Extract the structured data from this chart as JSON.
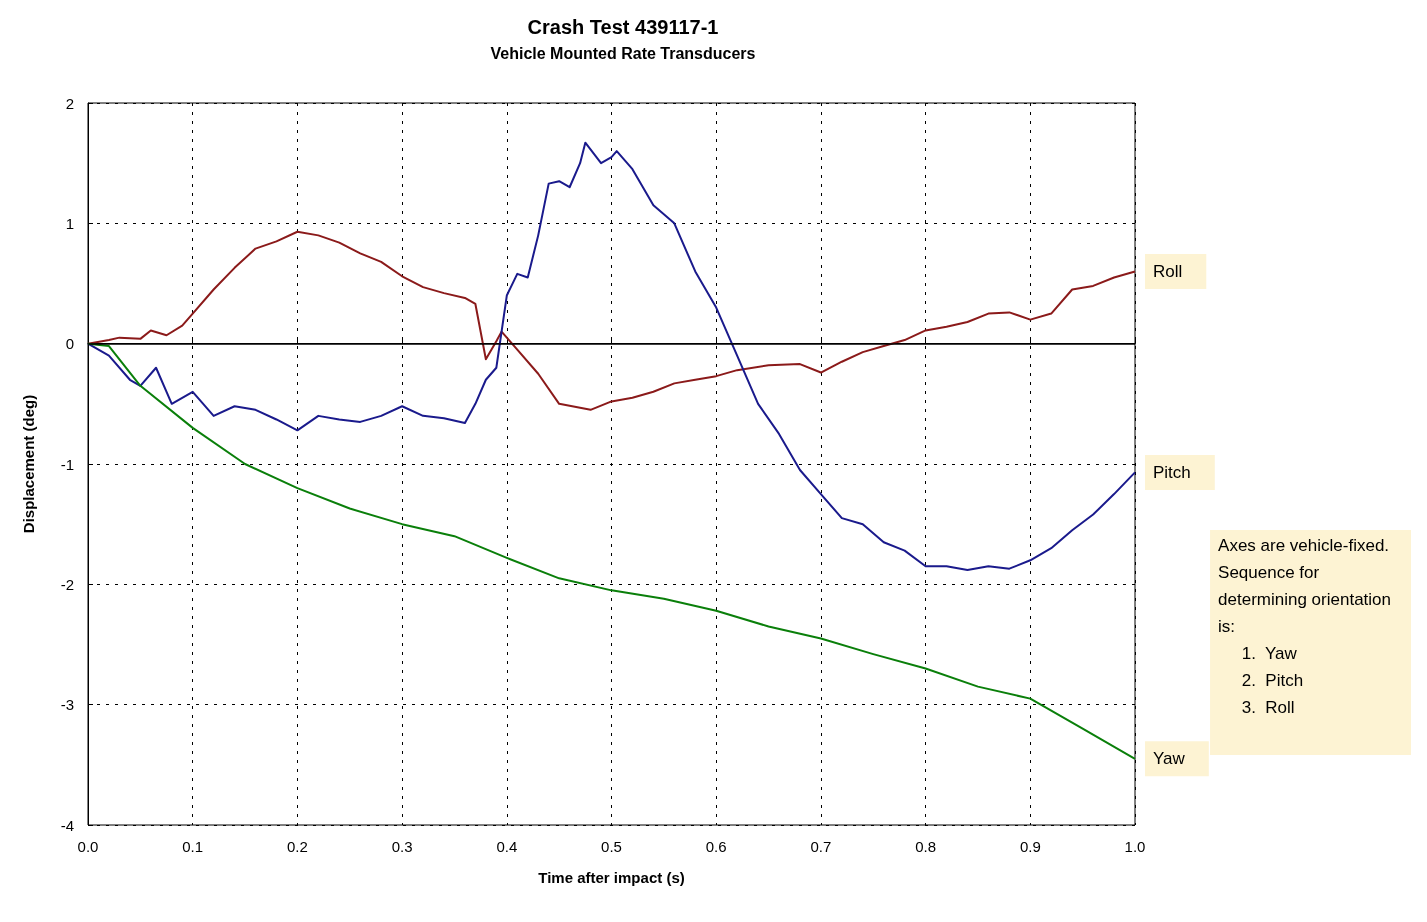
{
  "chart_data": {
    "type": "line",
    "title": "Crash Test 439117-1",
    "subtitle": "Vehicle Mounted Rate Transducers",
    "xlabel": "Time after impact (s)",
    "ylabel": "Displacement (deg)",
    "xlim": [
      0,
      1
    ],
    "xticks": [
      {
        "value": 0,
        "label": "0.0"
      },
      0.1,
      0.2,
      0.3,
      0.4,
      0.5,
      0.6,
      0.7,
      0.8,
      0.9,
      {
        "value": 1,
        "label": "1.0"
      }
    ],
    "ylim": [
      -4,
      2
    ],
    "yticks": [
      -4,
      -3,
      -2,
      -1,
      0,
      1,
      2
    ],
    "grid": true,
    "legend": false,
    "marker": "none",
    "line_style": "solid",
    "ref_lines": [
      {
        "axis": "y",
        "value": 0,
        "color": "#000000"
      }
    ],
    "annotations": [
      "Axes are vehicle-fixed.\nSequence for\ndetermining orientation\nis:\n     1.  Yaw\n     2.  Pitch\n     3.  Roll"
    ],
    "series": [
      {
        "name": "Roll",
        "color": "#8b1a1a",
        "x": [
          0,
          0.02,
          0.03,
          0.05,
          0.06,
          0.075,
          0.09,
          0.1,
          0.12,
          0.14,
          0.16,
          0.18,
          0.2,
          0.22,
          0.24,
          0.26,
          0.28,
          0.3,
          0.32,
          0.34,
          0.36,
          0.37,
          0.38,
          0.39,
          0.395,
          0.41,
          0.43,
          0.45,
          0.48,
          0.5,
          0.52,
          0.54,
          0.56,
          0.58,
          0.6,
          0.62,
          0.65,
          0.68,
          0.7,
          0.72,
          0.74,
          0.76,
          0.78,
          0.8,
          0.82,
          0.84,
          0.86,
          0.88,
          0.9,
          0.92,
          0.94,
          0.96,
          0.98,
          1.0
        ],
        "values": [
          0,
          0.03,
          0.05,
          0.04,
          0.11,
          0.07,
          0.15,
          0.25,
          0.45,
          0.63,
          0.79,
          0.85,
          0.93,
          0.9,
          0.84,
          0.75,
          0.68,
          0.56,
          0.47,
          0.42,
          0.38,
          0.33,
          -0.13,
          0.02,
          0.1,
          -0.05,
          -0.25,
          -0.5,
          -0.55,
          -0.48,
          -0.45,
          -0.4,
          -0.33,
          -0.3,
          -0.27,
          -0.22,
          -0.18,
          -0.17,
          -0.24,
          -0.15,
          -0.07,
          -0.02,
          0.03,
          0.11,
          0.14,
          0.18,
          0.25,
          0.26,
          0.2,
          0.25,
          0.45,
          0.48,
          0.55,
          0.6
        ]
      },
      {
        "name": "Pitch",
        "color": "#1a1a8c",
        "x": [
          0,
          0.02,
          0.04,
          0.05,
          0.065,
          0.08,
          0.1,
          0.12,
          0.14,
          0.16,
          0.18,
          0.2,
          0.22,
          0.24,
          0.26,
          0.28,
          0.3,
          0.32,
          0.34,
          0.36,
          0.37,
          0.38,
          0.39,
          0.4,
          0.41,
          0.42,
          0.43,
          0.44,
          0.45,
          0.46,
          0.47,
          0.475,
          0.49,
          0.5,
          0.505,
          0.52,
          0.54,
          0.56,
          0.58,
          0.6,
          0.62,
          0.64,
          0.66,
          0.68,
          0.7,
          0.72,
          0.74,
          0.76,
          0.78,
          0.8,
          0.82,
          0.84,
          0.86,
          0.88,
          0.9,
          0.92,
          0.94,
          0.96,
          0.98,
          1.0
        ],
        "values": [
          0,
          -0.1,
          -0.3,
          -0.35,
          -0.2,
          -0.5,
          -0.4,
          -0.6,
          -0.52,
          -0.55,
          -0.63,
          -0.72,
          -0.6,
          -0.63,
          -0.65,
          -0.6,
          -0.52,
          -0.6,
          -0.62,
          -0.66,
          -0.5,
          -0.3,
          -0.2,
          0.4,
          0.58,
          0.55,
          0.9,
          1.33,
          1.35,
          1.3,
          1.5,
          1.67,
          1.5,
          1.55,
          1.6,
          1.45,
          1.15,
          1.0,
          0.6,
          0.3,
          -0.1,
          -0.5,
          -0.75,
          -1.05,
          -1.25,
          -1.45,
          -1.5,
          -1.65,
          -1.72,
          -1.85,
          -1.85,
          -1.88,
          -1.85,
          -1.87,
          -1.8,
          -1.7,
          -1.55,
          -1.42,
          -1.25,
          -1.07
        ]
      },
      {
        "name": "Yaw",
        "color": "#0a7f0a",
        "x": [
          0,
          0.02,
          0.05,
          0.1,
          0.15,
          0.2,
          0.25,
          0.3,
          0.35,
          0.4,
          0.45,
          0.5,
          0.55,
          0.6,
          0.65,
          0.7,
          0.75,
          0.8,
          0.85,
          0.9,
          0.95,
          1.0
        ],
        "values": [
          0,
          -0.02,
          -0.35,
          -0.7,
          -1.0,
          -1.2,
          -1.37,
          -1.5,
          -1.6,
          -1.78,
          -1.95,
          -2.05,
          -2.12,
          -2.22,
          -2.35,
          -2.45,
          -2.58,
          -2.7,
          -2.85,
          -2.95,
          -3.2,
          -3.45
        ]
      }
    ]
  }
}
